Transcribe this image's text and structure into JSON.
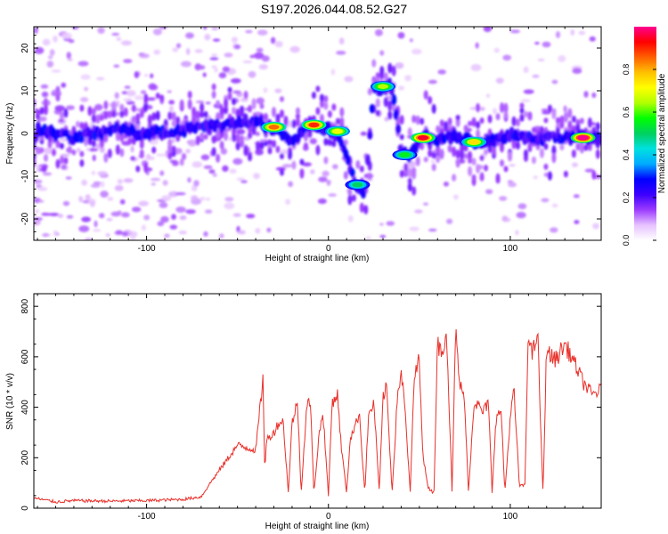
{
  "title": "S197.2026.044.08.52.G27",
  "chart_data": [
    {
      "type": "heatmap",
      "xlabel": "Height of straight line (km)",
      "ylabel": "Frequency (Hz)",
      "xlim": [
        -162,
        150
      ],
      "ylim": [
        -25,
        25
      ],
      "xticks": [
        -100,
        0,
        100
      ],
      "yticks": [
        -20,
        -10,
        0,
        10,
        20
      ],
      "colorbar": {
        "label": "Normalized spectral amplitude",
        "range": [
          0.0,
          1.0
        ],
        "ticks": [
          "0.0",
          "0.2",
          "0.4",
          "0.6",
          "0.8"
        ],
        "colors": [
          "#ffffff",
          "#e6c2ff",
          "#9b3bff",
          "#3b00ff",
          "#0000ff",
          "#00aaff",
          "#00e0e0",
          "#00d060",
          "#00ff00",
          "#b0ff00",
          "#ffff00",
          "#ffc000",
          "#ff6000",
          "#ff0000",
          "#ff0090"
        ]
      },
      "ridge": [
        {
          "x": -160,
          "f": 1
        },
        {
          "x": -140,
          "f": -1
        },
        {
          "x": -120,
          "f": 1
        },
        {
          "x": -100,
          "f": 0
        },
        {
          "x": -80,
          "f": 1
        },
        {
          "x": -60,
          "f": 2
        },
        {
          "x": -40,
          "f": 3
        },
        {
          "x": -30,
          "f": 1
        },
        {
          "x": -20,
          "f": -2
        },
        {
          "x": -10,
          "f": 2
        },
        {
          "x": 0,
          "f": 1
        },
        {
          "x": 5,
          "f": 0
        },
        {
          "x": 10,
          "f": -6
        },
        {
          "x": 15,
          "f": -12
        },
        {
          "x": 20,
          "f": -14
        },
        {
          "x": 25,
          "f": 10
        },
        {
          "x": 30,
          "f": 11
        },
        {
          "x": 35,
          "f": 11
        },
        {
          "x": 40,
          "f": -4
        },
        {
          "x": 45,
          "f": -5
        },
        {
          "x": 50,
          "f": -1
        },
        {
          "x": 60,
          "f": -1
        },
        {
          "x": 70,
          "f": -1
        },
        {
          "x": 80,
          "f": -2
        },
        {
          "x": 90,
          "f": -2
        },
        {
          "x": 100,
          "f": 0
        },
        {
          "x": 110,
          "f": -1
        },
        {
          "x": 120,
          "f": -1
        },
        {
          "x": 130,
          "f": -1
        },
        {
          "x": 150,
          "f": -1
        }
      ],
      "peaks": [
        {
          "x": -30,
          "f": 1.5,
          "a": 0.85
        },
        {
          "x": -8,
          "f": 2,
          "a": 0.9
        },
        {
          "x": 5,
          "f": 0.5,
          "a": 0.7
        },
        {
          "x": 16,
          "f": -12,
          "a": 0.5
        },
        {
          "x": 30,
          "f": 11,
          "a": 0.65
        },
        {
          "x": 42,
          "f": -5,
          "a": 0.55
        },
        {
          "x": 52,
          "f": -1,
          "a": 0.95
        },
        {
          "x": 80,
          "f": -2,
          "a": 0.75
        },
        {
          "x": 140,
          "f": -1,
          "a": 1.0
        }
      ]
    },
    {
      "type": "line",
      "xlabel": "Height of straight line (km)",
      "ylabel": "SNR (10 * v/v)",
      "xlim": [
        -162,
        150
      ],
      "ylim": [
        0,
        850
      ],
      "xticks": [
        -100,
        0,
        100
      ],
      "yticks": [
        0,
        200,
        400,
        600,
        800
      ],
      "line_color": "#e8302a",
      "series": [
        {
          "name": "SNR",
          "x": [
            -162,
            -150,
            -140,
            -120,
            -100,
            -80,
            -70,
            -65,
            -60,
            -55,
            -50,
            -45,
            -40,
            -36,
            -35,
            -34,
            -30,
            -28,
            -25,
            -22,
            -20,
            -17,
            -15,
            -12,
            -10,
            -8,
            -5,
            -3,
            0,
            2,
            5,
            7,
            10,
            12,
            15,
            17,
            20,
            22,
            25,
            28,
            30,
            32,
            35,
            38,
            40,
            42,
            45,
            47,
            50,
            52,
            55,
            58,
            60,
            62,
            65,
            68,
            70,
            72,
            75,
            77,
            80,
            82,
            85,
            88,
            90,
            92,
            95,
            97,
            100,
            102,
            105,
            108,
            110,
            112,
            115,
            118,
            120,
            122,
            125,
            130,
            135,
            140,
            145,
            150
          ],
          "y": [
            40,
            25,
            30,
            28,
            30,
            35,
            45,
            100,
            150,
            200,
            250,
            240,
            230,
            510,
            150,
            270,
            300,
            330,
            350,
            60,
            340,
            420,
            60,
            400,
            430,
            60,
            300,
            380,
            50,
            420,
            450,
            250,
            60,
            280,
            330,
            380,
            60,
            360,
            420,
            60,
            440,
            480,
            60,
            450,
            540,
            400,
            60,
            500,
            600,
            200,
            80,
            60,
            650,
            620,
            700,
            60,
            720,
            500,
            420,
            60,
            420,
            410,
            380,
            420,
            60,
            350,
            390,
            60,
            360,
            470,
            90,
            90,
            720,
            600,
            700,
            50,
            650,
            600,
            590,
            650,
            580,
            500,
            450,
            470
          ]
        }
      ]
    }
  ]
}
